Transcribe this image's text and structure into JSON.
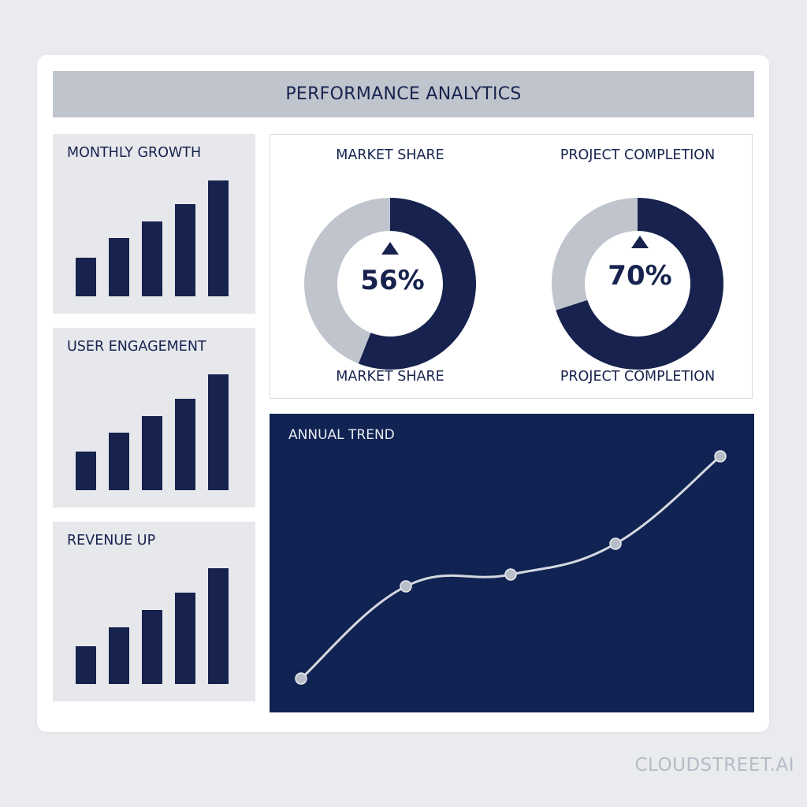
{
  "header": {
    "title": "PERFORMANCE ANALYTICS"
  },
  "colors": {
    "navy": "#17234e",
    "trend_bg": "#102352",
    "light_gray": "#bfc4cd",
    "line": "#d5d9e0"
  },
  "side_charts": [
    {
      "title": "MONTHLY GROWTH"
    },
    {
      "title": "USER ENGAGEMENT"
    },
    {
      "title": "REVENUE UP"
    }
  ],
  "donuts": [
    {
      "top_label": "MARKET SHARE",
      "bottom_label": "MARKET SHARE",
      "value_text": "56%",
      "icon": "triangle-up-icon"
    },
    {
      "top_label": "PROJECT COMPLETION",
      "bottom_label": "PROJECT COMPLETION",
      "value_text": "70%",
      "icon": "triangle-up-icon"
    }
  ],
  "trend": {
    "title": "ANNUAL TREND"
  },
  "brand": {
    "text": "CLOUDSTREET.AI"
  },
  "chart_data": [
    {
      "type": "bar",
      "title": "MONTHLY GROWTH",
      "values": [
        49,
        74,
        95,
        117,
        147
      ],
      "ylim": [
        0,
        160
      ]
    },
    {
      "type": "bar",
      "title": "USER ENGAGEMENT",
      "values": [
        49,
        73,
        94,
        116,
        147
      ],
      "ylim": [
        0,
        160
      ]
    },
    {
      "type": "bar",
      "title": "REVENUE UP",
      "values": [
        48,
        72,
        94,
        116,
        147
      ],
      "ylim": [
        0,
        160
      ]
    },
    {
      "type": "pie",
      "title": "MARKET SHARE",
      "values": [
        56,
        44
      ]
    },
    {
      "type": "pie",
      "title": "PROJECT COMPLETION",
      "values": [
        70,
        30
      ]
    },
    {
      "type": "line",
      "title": "ANNUAL TREND",
      "x": [
        0,
        1,
        2,
        3,
        4
      ],
      "y": [
        0,
        39,
        44,
        57,
        94
      ],
      "ylim": [
        0,
        100
      ]
    }
  ]
}
